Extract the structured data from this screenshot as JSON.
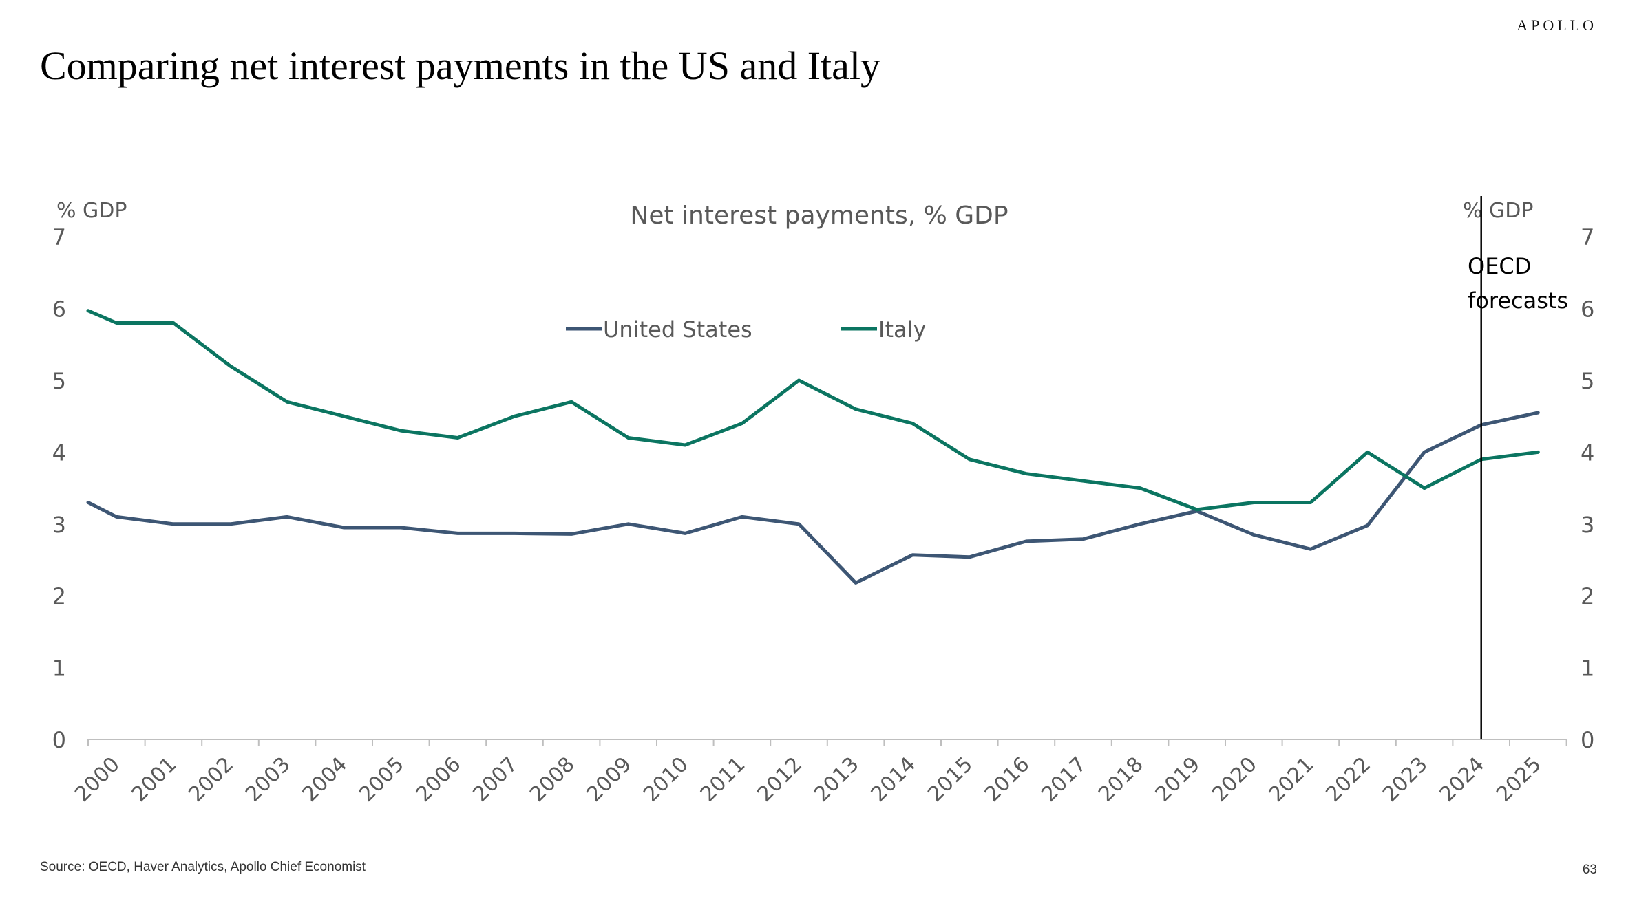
{
  "header": {
    "brand": "APOLLO",
    "title": "Comparing net interest payments in the US and Italy"
  },
  "footer": {
    "source": "Source: OECD, Haver Analytics, Apollo Chief Economist",
    "page_number": "63"
  },
  "annotation": {
    "forecast_line_x": 2024,
    "forecast_lines": [
      "OECD",
      "forecasts"
    ]
  },
  "chart_data": {
    "type": "line",
    "title": "Net interest payments, % GDP",
    "ylabel_left": "% GDP",
    "ylabel_right": "% GDP",
    "ylim": [
      0,
      7
    ],
    "yticks": [
      "0",
      "1",
      "2",
      "3",
      "4",
      "5",
      "6",
      "7"
    ],
    "x": [
      2000,
      2001,
      2002,
      2003,
      2004,
      2005,
      2006,
      2007,
      2008,
      2009,
      2010,
      2011,
      2012,
      2013,
      2014,
      2015,
      2016,
      2017,
      2018,
      2019,
      2020,
      2021,
      2022,
      2023,
      2024,
      2025
    ],
    "legend_position": "top-center",
    "grid": false,
    "series": [
      {
        "name": "United States",
        "color": "#3d5674",
        "x": [
          2000,
          2000.5,
          2001.5,
          2002.5,
          2003.5,
          2004.5,
          2005.5,
          2006.5,
          2007.5,
          2008.5,
          2009.5,
          2010.5,
          2011.5,
          2012.5,
          2013.5,
          2014.5,
          2015.5,
          2016.5,
          2017.5,
          2018.5,
          2019.5,
          2020.5,
          2021.5,
          2022.5,
          2023.5,
          2024.5,
          2025.5
        ],
        "values": [
          3.3,
          3.1,
          3.0,
          3.0,
          3.1,
          2.95,
          2.95,
          2.87,
          2.87,
          2.86,
          3.0,
          2.87,
          3.1,
          3.0,
          2.18,
          2.57,
          2.54,
          2.76,
          2.79,
          3.0,
          3.18,
          2.85,
          2.65,
          2.98,
          4.0,
          4.38,
          4.55
        ]
      },
      {
        "name": "Italy",
        "color": "#0b7561",
        "x": [
          2000,
          2000.5,
          2001.5,
          2002.5,
          2003.5,
          2004.5,
          2005.5,
          2006.5,
          2007.5,
          2008.5,
          2009.5,
          2010.5,
          2011.5,
          2012.5,
          2013.5,
          2014.5,
          2015.5,
          2016.5,
          2017.5,
          2018.5,
          2019.5,
          2020.5,
          2021.5,
          2022.5,
          2023.5,
          2024.5,
          2025.5
        ],
        "values": [
          5.97,
          5.8,
          5.8,
          5.2,
          4.7,
          4.5,
          4.3,
          4.2,
          4.5,
          4.7,
          4.2,
          4.1,
          4.4,
          5.0,
          4.6,
          4.4,
          3.9,
          3.7,
          3.6,
          3.5,
          3.2,
          3.3,
          3.3,
          4.0,
          3.5,
          3.9,
          4.0
        ]
      }
    ]
  }
}
